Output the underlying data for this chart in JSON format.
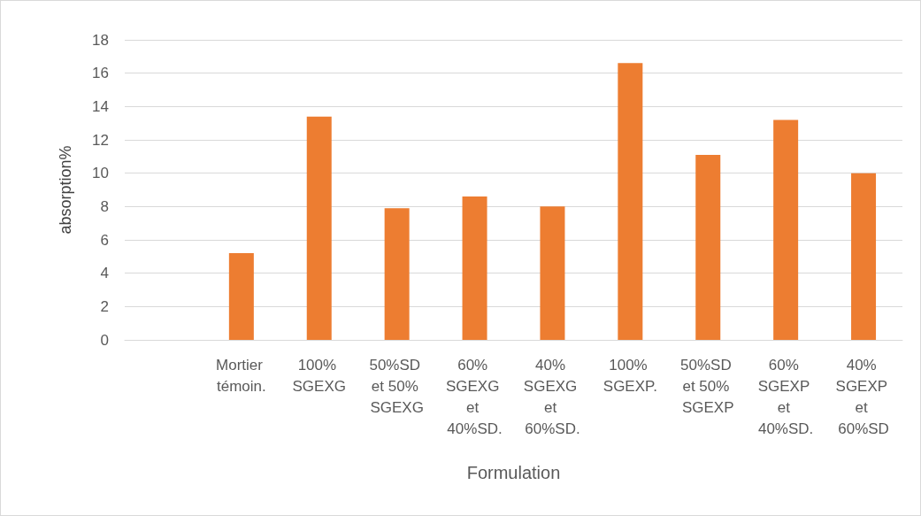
{
  "chart_data": {
    "type": "bar",
    "xlabel": "Formulation",
    "ylabel": "absorption%",
    "categories": [
      null,
      "Mortier témoin.",
      "100% SGEXG",
      "50%SD et 50% SGEXG",
      "60% SGEXG et 40%SD.",
      "40% SGEXG et 60%SD.",
      "100% SGEXP.",
      "50%SD et 50% SGEXP",
      "60% SGEXP et 40%SD.",
      "40% SGEXP et 60%SD"
    ],
    "values": [
      null,
      5.2,
      13.4,
      7.9,
      8.6,
      8.0,
      16.6,
      11.1,
      13.2,
      10.0
    ],
    "color": "#ed7d31",
    "ylim": [
      0,
      18
    ],
    "yticks": [
      0,
      2,
      4,
      6,
      8,
      10,
      12,
      14,
      16,
      18
    ],
    "grid": "y"
  }
}
